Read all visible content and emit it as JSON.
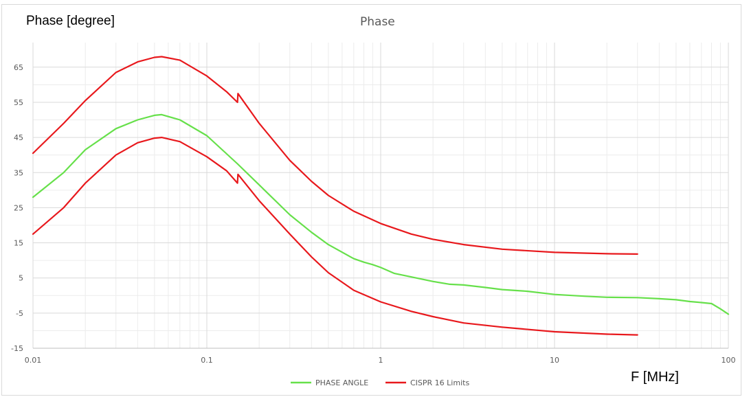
{
  "chart_data": {
    "type": "line",
    "title": "Phase",
    "ylabel": "Phase [degree]",
    "xlabel": "F [MHz]",
    "x_scale": "log",
    "xlim": [
      0.01,
      100
    ],
    "ylim": [
      -15,
      72
    ],
    "x_ticks": [
      0.01,
      0.1,
      1,
      10,
      100
    ],
    "x_tick_labels": [
      "0.01",
      "0.1",
      "1",
      "10",
      "100"
    ],
    "y_ticks": [
      -15,
      -5,
      5,
      15,
      25,
      35,
      45,
      55,
      65
    ],
    "y_tick_labels": [
      "-15",
      "-5",
      "5",
      "15",
      "25",
      "35",
      "45",
      "55",
      "65"
    ],
    "grid": true,
    "legend_position": "bottom",
    "series": [
      {
        "name": "PHASE ANGLE",
        "color": "#66e04a",
        "points": [
          [
            0.01,
            28
          ],
          [
            0.015,
            35
          ],
          [
            0.02,
            41.5
          ],
          [
            0.03,
            47.5
          ],
          [
            0.04,
            50
          ],
          [
            0.05,
            51.3
          ],
          [
            0.055,
            51.5
          ],
          [
            0.07,
            50
          ],
          [
            0.1,
            45.5
          ],
          [
            0.15,
            37.5
          ],
          [
            0.2,
            31.5
          ],
          [
            0.3,
            23
          ],
          [
            0.4,
            18
          ],
          [
            0.5,
            14.5
          ],
          [
            0.7,
            10.5
          ],
          [
            0.8,
            9.5
          ],
          [
            0.9,
            8.8
          ],
          [
            1,
            8
          ],
          [
            1.2,
            6.3
          ],
          [
            1.5,
            5.3
          ],
          [
            2,
            4
          ],
          [
            2.5,
            3.2
          ],
          [
            3,
            3
          ],
          [
            4,
            2.3
          ],
          [
            5,
            1.7
          ],
          [
            7,
            1.2
          ],
          [
            10,
            0.3
          ],
          [
            15,
            -0.2
          ],
          [
            20,
            -0.5
          ],
          [
            30,
            -0.6
          ],
          [
            40,
            -0.9
          ],
          [
            50,
            -1.2
          ],
          [
            60,
            -1.7
          ],
          [
            70,
            -2
          ],
          [
            80,
            -2.3
          ],
          [
            90,
            -3.8
          ],
          [
            100,
            -5.3
          ]
        ]
      },
      {
        "name": "CISPR 16 Limits",
        "color": "#e8181c",
        "points": [
          [
            0.01,
            40.5
          ],
          [
            0.015,
            49
          ],
          [
            0.02,
            55.5
          ],
          [
            0.03,
            63.5
          ],
          [
            0.04,
            66.5
          ],
          [
            0.05,
            67.8
          ],
          [
            0.055,
            68
          ],
          [
            0.07,
            67
          ],
          [
            0.1,
            62.5
          ],
          [
            0.13,
            58
          ],
          [
            0.15,
            55
          ],
          [
            0.151,
            57.5
          ],
          [
            0.2,
            49
          ],
          [
            0.3,
            38.5
          ],
          [
            0.4,
            32.5
          ],
          [
            0.5,
            28.5
          ],
          [
            0.7,
            24
          ],
          [
            1,
            20.5
          ],
          [
            1.5,
            17.5
          ],
          [
            2,
            16
          ],
          [
            3,
            14.5
          ],
          [
            5,
            13.2
          ],
          [
            10,
            12.3
          ],
          [
            20,
            11.9
          ],
          [
            30,
            11.8
          ]
        ]
      },
      {
        "name": "CISPR 16 Limits",
        "color": "#e8181c",
        "show_in_legend": false,
        "points": [
          [
            0.01,
            17.5
          ],
          [
            0.015,
            25
          ],
          [
            0.02,
            32
          ],
          [
            0.03,
            40
          ],
          [
            0.04,
            43.5
          ],
          [
            0.05,
            44.8
          ],
          [
            0.055,
            45
          ],
          [
            0.07,
            43.8
          ],
          [
            0.1,
            39.5
          ],
          [
            0.13,
            35.5
          ],
          [
            0.15,
            32
          ],
          [
            0.151,
            34.5
          ],
          [
            0.2,
            27
          ],
          [
            0.3,
            17.5
          ],
          [
            0.4,
            11
          ],
          [
            0.5,
            6.5
          ],
          [
            0.7,
            1.5
          ],
          [
            1,
            -1.8
          ],
          [
            1.5,
            -4.5
          ],
          [
            2,
            -6
          ],
          [
            3,
            -7.8
          ],
          [
            5,
            -9
          ],
          [
            10,
            -10.3
          ],
          [
            20,
            -11
          ],
          [
            30,
            -11.2
          ]
        ]
      }
    ]
  }
}
